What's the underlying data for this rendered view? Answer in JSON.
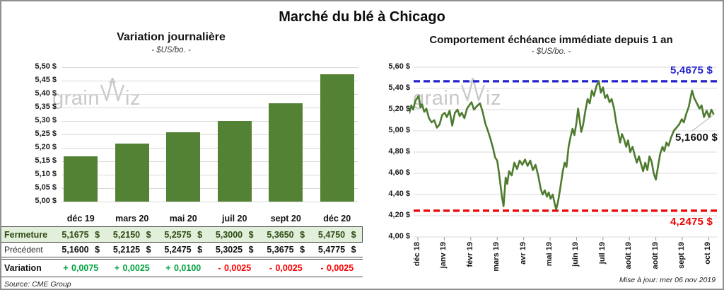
{
  "header": {
    "title": "Marché du blé à Chicago"
  },
  "watermark": {
    "prefix": "grain",
    "suffix": "iz"
  },
  "footer": {
    "source": "Source: CME Group",
    "updated": "Mise à jour: mer 06 nov 2019"
  },
  "chart_data": [
    {
      "type": "bar",
      "title": "Variation journalière",
      "subtitle": "- $US/bo. -",
      "categories": [
        "déc 19",
        "mars 20",
        "mai 20",
        "juil 20",
        "sept 20",
        "déc 20"
      ],
      "values": [
        5.1675,
        5.215,
        5.2575,
        5.3,
        5.365,
        5.475
      ],
      "ylim": [
        5.0,
        5.5
      ],
      "ytick_step": 0.05,
      "ytick_labels": [
        "5,50 $",
        "5,45 $",
        "5,40 $",
        "5,35 $",
        "5,30 $",
        "5,25 $",
        "5,20 $",
        "5,15 $",
        "5,10 $",
        "5,05 $",
        "5,00 $"
      ],
      "bar_color": "#548235",
      "grid": true
    },
    {
      "type": "line",
      "title": "Comportement échéance immédiate depuis 1 an",
      "subtitle": "- $US/bo. -",
      "ylim": [
        4.0,
        5.6
      ],
      "ytick_step": 0.2,
      "ytick_labels": [
        "5,60 $",
        "5,40 $",
        "5,20 $",
        "5,00 $",
        "4,80 $",
        "4,60 $",
        "4,40 $",
        "4,20 $",
        "4,00 $"
      ],
      "x_tick_labels": [
        "déc 18",
        "janv 19",
        "févr 19",
        "mars 19",
        "avr 19",
        "mai 19",
        "juin 19",
        "juil 19",
        "août 19",
        "août 19",
        "sept 19",
        "oct 19"
      ],
      "grid": true,
      "series": [
        {
          "name": "échéance immédiate",
          "color": "#4e7b2f",
          "x": [
            -0.32,
            -0.25,
            -0.18,
            -0.1,
            0.03,
            0.1,
            0.16,
            0.24,
            0.32,
            0.42,
            0.52,
            0.62,
            0.72,
            0.82,
            0.92,
            1.02,
            1.1,
            1.2,
            1.3,
            1.4,
            1.5,
            1.58,
            1.66,
            1.76,
            1.86,
            1.94,
            2.03,
            2.12,
            2.22,
            2.35,
            2.45,
            2.55,
            2.65,
            2.75,
            2.85,
            2.92,
            3.0,
            3.06,
            3.12,
            3.18,
            3.24,
            3.32,
            3.38,
            3.45,
            3.55,
            3.65,
            3.75,
            3.85,
            3.95,
            4.05,
            4.15,
            4.25,
            4.35,
            4.45,
            4.55,
            4.65,
            4.72,
            4.8,
            4.88,
            4.95,
            5.02,
            5.1,
            5.18,
            5.23,
            5.3,
            5.38,
            5.48,
            5.55,
            5.62,
            5.7,
            5.78,
            5.85,
            5.92,
            6.0,
            6.06,
            6.12,
            6.18,
            6.25,
            6.33,
            6.42,
            6.5,
            6.58,
            6.66,
            6.75,
            6.84,
            6.92,
            7.0,
            7.08,
            7.16,
            7.25,
            7.33,
            7.42,
            7.5,
            7.58,
            7.65,
            7.72,
            7.8,
            7.88,
            7.95,
            8.03,
            8.12,
            8.2,
            8.28,
            8.36,
            8.45,
            8.52,
            8.6,
            8.68,
            8.76,
            8.84,
            8.92,
            9.0,
            9.08,
            9.16,
            9.25,
            9.32,
            9.4,
            9.48,
            9.58,
            9.68,
            9.78,
            9.88,
            9.98,
            10.06,
            10.15,
            10.25,
            10.37,
            10.45,
            10.55,
            10.65,
            10.73,
            10.82,
            10.92,
            11.02,
            11.1,
            11.18
          ],
          "y": [
            5.17,
            5.24,
            5.2,
            5.28,
            5.33,
            5.22,
            5.25,
            5.18,
            5.21,
            5.12,
            5.08,
            5.1,
            5.03,
            5.06,
            5.15,
            5.17,
            5.13,
            5.19,
            5.05,
            5.17,
            5.2,
            5.14,
            5.17,
            5.12,
            5.21,
            5.24,
            5.27,
            5.2,
            5.23,
            5.26,
            5.18,
            5.07,
            5.0,
            4.92,
            4.83,
            4.75,
            4.72,
            4.62,
            4.5,
            4.38,
            4.29,
            4.56,
            4.5,
            4.62,
            4.58,
            4.7,
            4.64,
            4.72,
            4.68,
            4.73,
            4.67,
            4.72,
            4.63,
            4.68,
            4.58,
            4.45,
            4.4,
            4.44,
            4.38,
            4.42,
            4.36,
            4.4,
            4.31,
            4.26,
            4.33,
            4.45,
            4.62,
            4.7,
            4.66,
            4.85,
            4.95,
            5.02,
            4.96,
            5.08,
            5.21,
            5.1,
            4.99,
            5.06,
            5.18,
            5.3,
            5.26,
            5.38,
            5.33,
            5.42,
            5.47,
            5.36,
            5.41,
            5.31,
            5.34,
            5.27,
            5.3,
            5.21,
            5.08,
            4.98,
            4.89,
            4.97,
            4.92,
            4.85,
            4.91,
            4.8,
            4.85,
            4.77,
            4.7,
            4.76,
            4.68,
            4.62,
            4.7,
            4.63,
            4.76,
            4.71,
            4.6,
            4.54,
            4.66,
            4.78,
            4.85,
            4.81,
            4.89,
            4.86,
            4.94,
            5.0,
            5.03,
            5.06,
            5.11,
            5.08,
            5.16,
            5.23,
            5.38,
            5.31,
            5.26,
            5.21,
            5.24,
            5.13,
            5.19,
            5.13,
            5.2,
            5.16
          ]
        }
      ],
      "annotations": {
        "resistance": {
          "value": 5.4675,
          "label": "5,4675 $",
          "color": "#2222cc"
        },
        "support": {
          "value": 4.2475,
          "label": "4,2475 $",
          "color": "#ee0000"
        },
        "last": {
          "value": 5.16,
          "label": "5,1600 $",
          "color": "#111111"
        }
      }
    }
  ],
  "table": {
    "columns": [
      "déc 19",
      "mars 20",
      "mai 20",
      "juil 20",
      "sept 20",
      "déc 20"
    ],
    "rows": [
      {
        "key": "fermeture",
        "label": "Fermeture",
        "values": [
          "5,1675 $",
          "5,2150 $",
          "5,2575 $",
          "5,3000 $",
          "5,3650 $",
          "5,4750 $"
        ]
      },
      {
        "key": "precedent",
        "label": "Précédent",
        "values": [
          "5,1600 $",
          "5,2125 $",
          "5,2475 $",
          "5,3025 $",
          "5,3675 $",
          "5,4775 $"
        ]
      },
      {
        "key": "variation",
        "label": "Variation",
        "values": [
          "+ 0,0075",
          "+ 0,0025",
          "+ 0,0100",
          "- 0,0025",
          "- 0,0025",
          "- 0,0025"
        ],
        "signs": [
          "pos",
          "pos",
          "pos",
          "neg",
          "neg",
          "neg"
        ]
      }
    ],
    "colors": {
      "positive": "#00a33e",
      "negative": "#ff0000",
      "close_row_bg": "#e2efda",
      "close_row_text": "#2f4d16"
    }
  }
}
